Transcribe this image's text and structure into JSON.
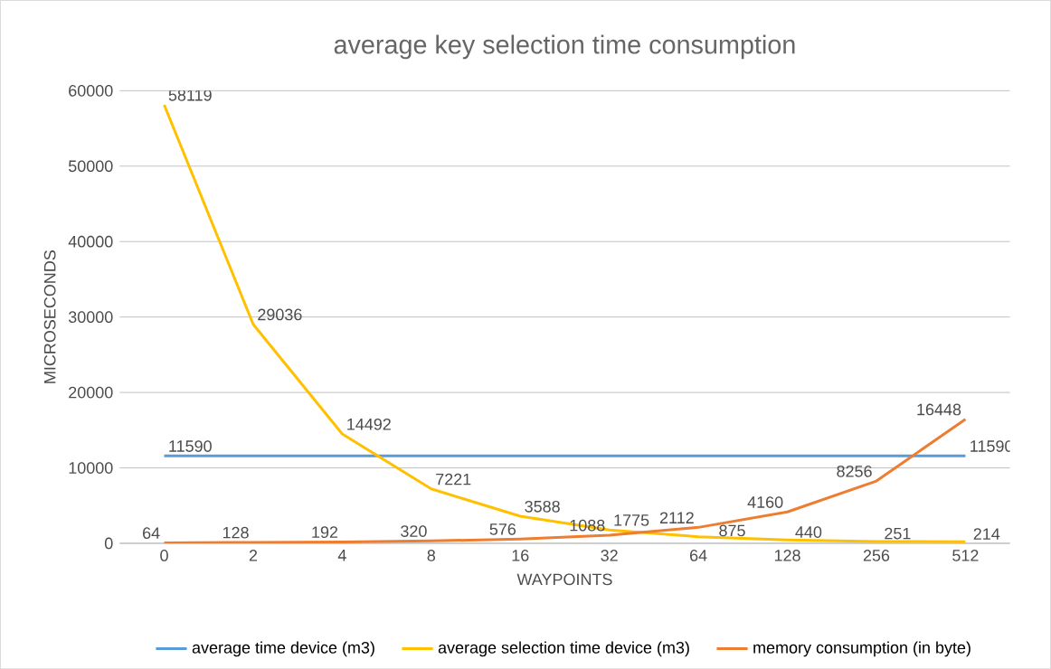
{
  "chart_data": {
    "type": "line",
    "title": "average key selection time consumption",
    "xlabel": "WAYPOINTS",
    "ylabel": "MICROSECONDS",
    "categories": [
      "0",
      "2",
      "4",
      "8",
      "16",
      "32",
      "64",
      "128",
      "256",
      "512"
    ],
    "series": [
      {
        "name": "average time device (m3)",
        "color": "#5b9bd5",
        "values": [
          11590,
          11590,
          11590,
          11590,
          11590,
          11590,
          11590,
          11590,
          11590,
          11590
        ],
        "value_labels": [
          "11590",
          null,
          null,
          null,
          null,
          null,
          null,
          null,
          null,
          "11590"
        ]
      },
      {
        "name": "average selection time device (m3)",
        "color": "#ffc000",
        "values": [
          58119,
          29036,
          14492,
          7221,
          3588,
          1775,
          875,
          440,
          251,
          214
        ],
        "value_labels": [
          "58119",
          "29036",
          "14492",
          "7221",
          "3588",
          "1775",
          "875",
          "440",
          "251",
          "214"
        ]
      },
      {
        "name": "memory consumption (in byte)",
        "color": "#ed7d31",
        "values": [
          64,
          128,
          192,
          320,
          576,
          1088,
          2112,
          4160,
          8256,
          16448
        ],
        "value_labels": [
          "64",
          "128",
          "192",
          "320",
          "576",
          "1088",
          "2112",
          "4160",
          "8256",
          "16448"
        ]
      }
    ],
    "ylim": [
      0,
      60000
    ],
    "yticks": [
      0,
      10000,
      20000,
      30000,
      40000,
      50000,
      60000
    ],
    "grid": "y",
    "legend": "bottom",
    "marker": "none",
    "line_style": "solid"
  }
}
